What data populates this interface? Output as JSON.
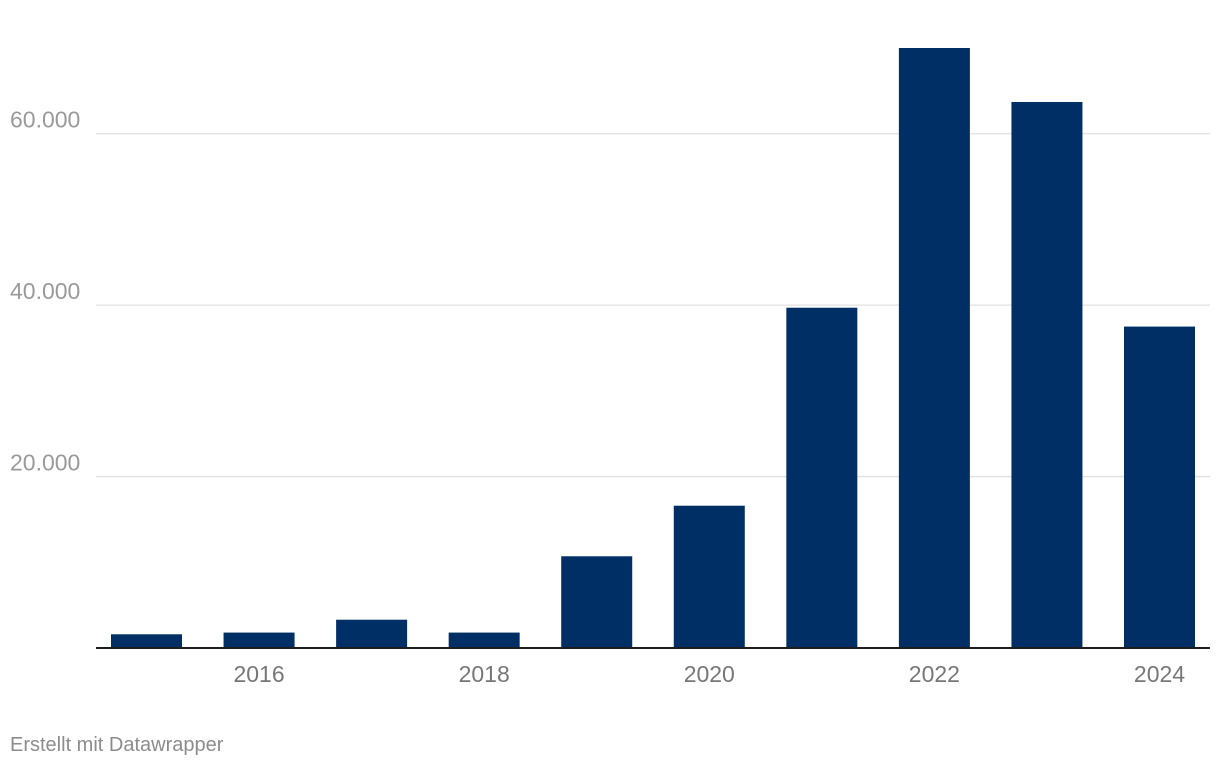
{
  "chart_data": {
    "type": "bar",
    "categories": [
      "2015",
      "2016",
      "2017",
      "2018",
      "2019",
      "2020",
      "2021",
      "2022",
      "2023",
      "2024"
    ],
    "values": [
      1600,
      1800,
      3300,
      1800,
      10700,
      16600,
      39700,
      70000,
      63700,
      37500
    ],
    "x_tick_labels": [
      "2016",
      "2018",
      "2020",
      "2022",
      "2024"
    ],
    "y_ticks": [
      20000,
      40000,
      60000
    ],
    "y_tick_labels": [
      "20.000",
      "40.000",
      "60.000"
    ],
    "ylim": [
      0,
      70000
    ],
    "title": "",
    "xlabel": "",
    "ylabel": "",
    "grid": true,
    "legend": "none",
    "bar_color": "#002f65"
  },
  "footer": {
    "credit": "Erstellt mit Datawrapper"
  }
}
